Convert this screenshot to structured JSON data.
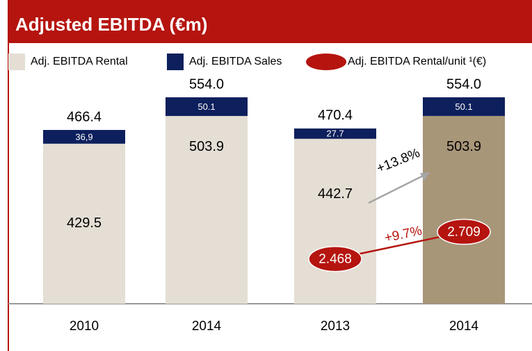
{
  "chart_data": {
    "type": "stacked_bar",
    "title": "Adjusted EBITDA (€m)",
    "categories": [
      "2010",
      "2014",
      "2013",
      "2014"
    ],
    "series": [
      {
        "name": "Adj. EBITDA Rental",
        "color": "#e4ded4",
        "colors": [
          "#e4ded4",
          "#e4ded4",
          "#e4ded4",
          "#a89679"
        ],
        "values": [
          429.5,
          503.9,
          442.7,
          503.9
        ]
      },
      {
        "name": "Adj. EBITDA Sales",
        "color": "#0d1f5c",
        "values": [
          36.9,
          50.1,
          27.7,
          50.1
        ],
        "value_labels": [
          "36,9",
          "50.1",
          "27.7",
          "50.1"
        ]
      },
      {
        "name": "Adj. EBITDA Rental/unit ¹(€)",
        "color": "#b5140f",
        "axis": "y2",
        "values": [
          null,
          null,
          2.468,
          2.709
        ]
      }
    ],
    "totals": {
      "values": [
        466.4,
        554.0,
        470.4,
        554.0
      ],
      "value_labels": [
        "466.4",
        "554.0",
        "470.4",
        "554.0"
      ]
    },
    "annotations": [
      {
        "text": "+13.8%",
        "color": "#a6a6a6"
      },
      {
        "text": "+9.7%",
        "color": "#b5140f"
      }
    ],
    "ylim": [
      0,
      610
    ],
    "y2lim": [
      2.07,
      4.09
    ]
  }
}
